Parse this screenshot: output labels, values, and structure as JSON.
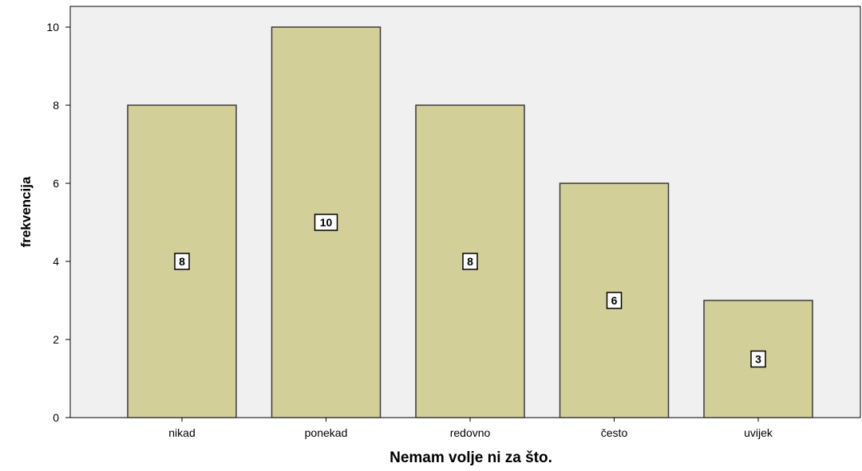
{
  "chart_data": {
    "type": "bar",
    "title": "",
    "xlabel": "Nemam volje ni za što.",
    "ylabel": "frekvencija",
    "categories": [
      "nikad",
      "ponekad",
      "redovno",
      "često",
      "uvijek"
    ],
    "values": [
      8,
      10,
      8,
      6,
      3
    ],
    "data_labels": [
      "8",
      "10",
      "8",
      "6",
      "3"
    ],
    "yticks": [
      "0",
      "2",
      "4",
      "6",
      "8",
      "10"
    ],
    "ylim": [
      0,
      10.5
    ],
    "grid": false,
    "legend": "none",
    "colors": {
      "plot_background": "#f0f0f0",
      "bar_fill": "#d3cf98",
      "bar_stroke": "#3a3a3a",
      "label_box_fill": "#ffffff",
      "label_box_stroke": "#000000",
      "axis": "#000000",
      "text": "#000000"
    }
  }
}
